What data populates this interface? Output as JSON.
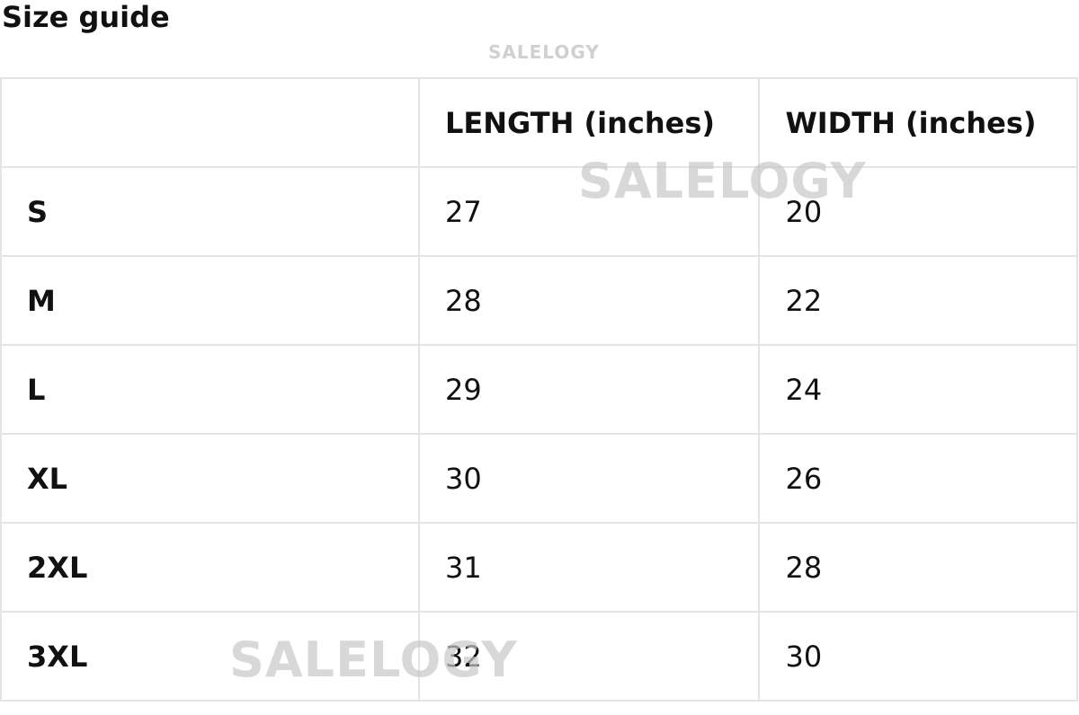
{
  "title": "Size guide",
  "watermark": "SALELOGY",
  "table": {
    "headers": [
      "",
      "LENGTH (inches)",
      "WIDTH (inches)"
    ],
    "rows": [
      {
        "size": "S",
        "length": "27",
        "width": "20"
      },
      {
        "size": "M",
        "length": "28",
        "width": "22"
      },
      {
        "size": "L",
        "length": "29",
        "width": "24"
      },
      {
        "size": "XL",
        "length": "30",
        "width": "26"
      },
      {
        "size": "2XL",
        "length": "31",
        "width": "28"
      },
      {
        "size": "3XL",
        "length": "32",
        "width": "30"
      }
    ]
  }
}
